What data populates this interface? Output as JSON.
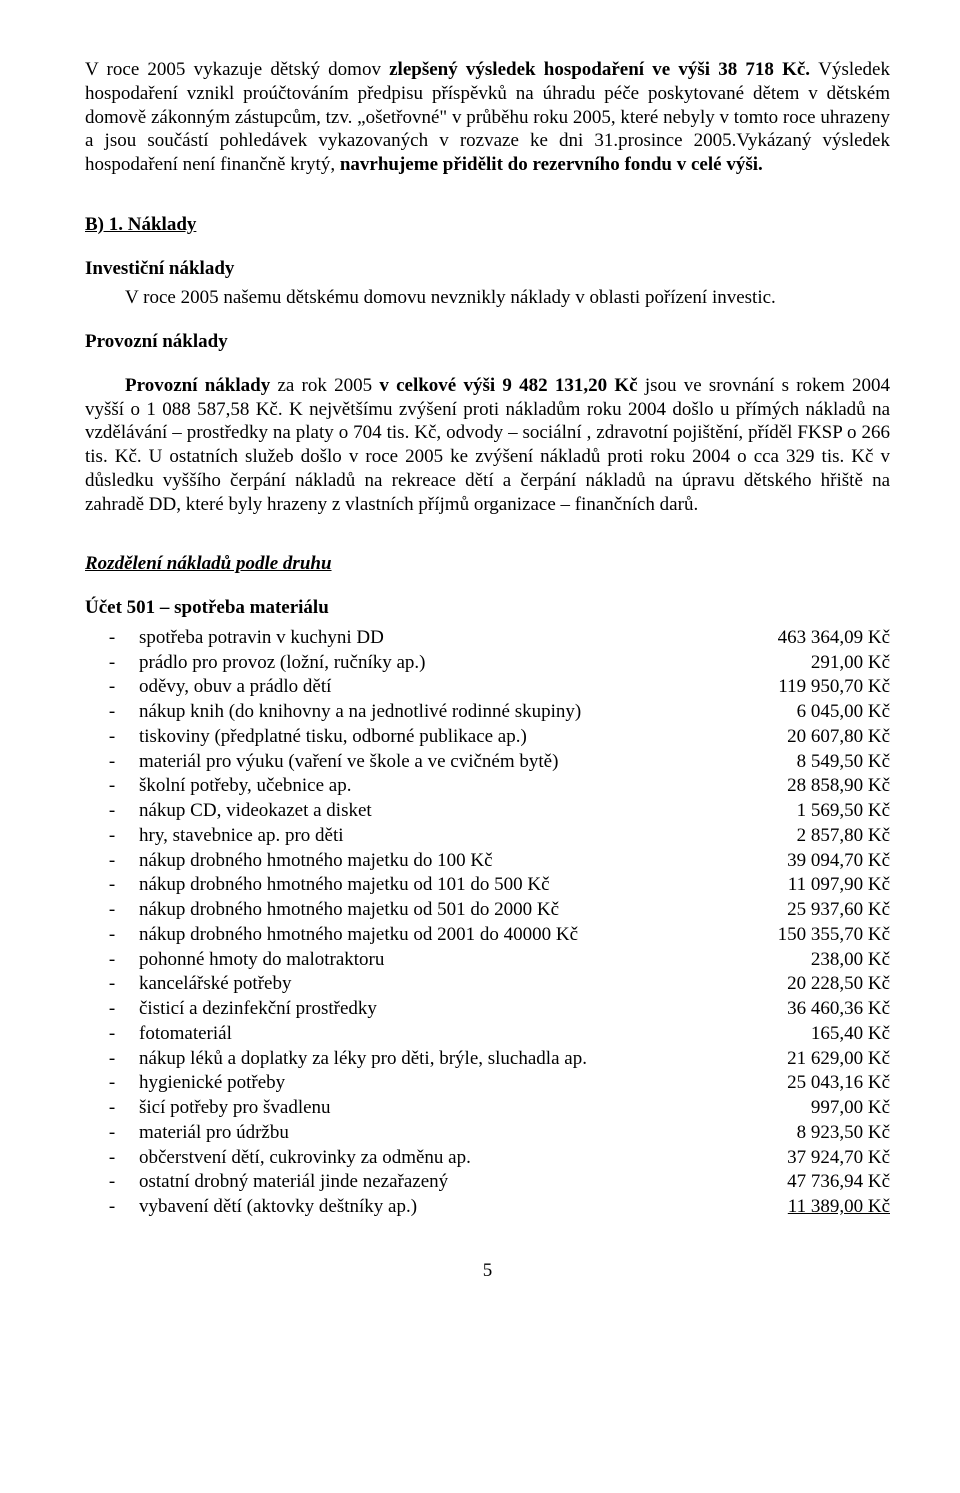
{
  "para1_a": "V roce 2005 vykazuje dětský domov ",
  "para1_b": "zlepšený výsledek hospodaření ve výši 38 718 Kč. ",
  "para1_c": "Výsledek hospodaření vznikl proúčtováním předpisu příspěvků na úhradu péče poskytované dětem v dětském domově zákonným zástupcům, tzv. „ošetřovné\" v průběhu roku 2005, které nebyly v tomto roce uhrazeny a jsou součástí pohledávek vykazovaných v rozvaze ke dni 31.prosince 2005.Vykázaný výsledek hospodaření není finančně krytý, ",
  "para1_d": "navrhujeme přidělit do rezervního fondu v celé výši.",
  "hdr_b1": "B) 1. Náklady",
  "hdr_inv": "Investiční náklady",
  "txt_inv": "V roce 2005 našemu  dětskému domovu nevznikly  náklady v oblasti pořízení investic.",
  "hdr_prov": "Provozní náklady",
  "p_prov_a": "Provozní náklady ",
  "p_prov_b": "za rok 2005 ",
  "p_prov_c": "v celkové výši 9 482 131,20 Kč ",
  "p_prov_d": "jsou ve srovnání s rokem 2004 vyšší o 1 088 587,58 Kč. K největšímu zvýšení proti nákladům roku 2004 došlo u přímých nákladů na vzdělávání – prostředky na platy o 704 tis. Kč, odvody – sociální , zdravotní pojištění, příděl FKSP o 266 tis. Kč. U ostatních služeb došlo v roce 2005 ke zvýšení nákladů proti roku 2004 o cca 329 tis. Kč v důsledku vyššího čerpání nákladů na rekreace dětí a čerpání nákladů na úpravu dětského hřiště na zahradě DD, které byly hrazeny z vlastních příjmů organizace – finančních darů.",
  "hdr_rozd": "Rozdělení nákladů podle druhu",
  "hdr_501": "Účet 501 – spotřeba materiálu",
  "items": [
    {
      "label": "spotřeba potravin v kuchyni DD",
      "value": "463 364,09 Kč"
    },
    {
      "label": "prádlo pro provoz (ložní, ručníky ap.)",
      "value": "291,00 Kč"
    },
    {
      "label": "oděvy, obuv a prádlo dětí",
      "value": "119 950,70 Kč"
    },
    {
      "label": "nákup knih (do knihovny a na jednotlivé rodinné skupiny)",
      "value": "6 045,00 Kč"
    },
    {
      "label": "tiskoviny (předplatné tisku, odborné publikace ap.)",
      "value": "20 607,80 Kč"
    },
    {
      "label": "materiál pro výuku (vaření ve škole a ve cvičném bytě)",
      "value": "8 549,50 Kč"
    },
    {
      "label": "školní potřeby, učebnice ap.",
      "value": "28 858,90 Kč"
    },
    {
      "label": "nákup CD, videokazet a disket",
      "value": "1 569,50 Kč"
    },
    {
      "label": "hry, stavebnice ap. pro děti",
      "value": "2 857,80 Kč"
    },
    {
      "label": "nákup drobného hmotného majetku do 100 Kč",
      "value": "39 094,70 Kč"
    },
    {
      "label": "nákup drobného hmotného majetku od 101 do 500 Kč",
      "value": "11 097,90 Kč"
    },
    {
      "label": "nákup drobného hmotného majetku od 501 do 2000 Kč",
      "value": "25 937,60 Kč"
    },
    {
      "label": "nákup drobného hmotného majetku od 2001 do 40000 Kč",
      "value": "150 355,70 Kč"
    },
    {
      "label": "pohonné hmoty do malotraktoru",
      "value": "238,00 Kč"
    },
    {
      "label": "kancelářské potřeby",
      "value": "20 228,50 Kč"
    },
    {
      "label": "čisticí a dezinfekční prostředky",
      "value": "36 460,36 Kč"
    },
    {
      "label": "fotomateriál",
      "value": "165,40 Kč"
    },
    {
      "label": "nákup léků a doplatky za léky pro děti, brýle, sluchadla ap.",
      "value": "21 629,00 Kč"
    },
    {
      "label": "hygienické potřeby",
      "value": "25 043,16 Kč"
    },
    {
      "label": "šicí potřeby pro švadlenu",
      "value": "997,00 Kč"
    },
    {
      "label": "materiál pro údržbu",
      "value": "8 923,50 Kč"
    },
    {
      "label": "občerstvení dětí, cukrovinky za odměnu ap.",
      "value": "37 924,70 Kč"
    },
    {
      "label": "ostatní drobný materiál jinde nezařazený",
      "value": "47 736,94 Kč"
    },
    {
      "label": "vybavení dětí (aktovky deštníky ap.)",
      "value": "11 389,00 Kč",
      "ul": true
    }
  ],
  "page_no": "5"
}
